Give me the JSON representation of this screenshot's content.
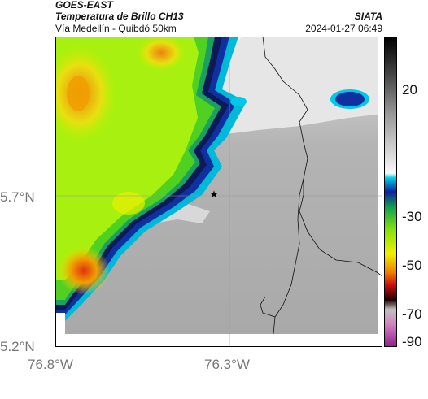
{
  "header": {
    "title_line1": "GOES-EAST",
    "title_line2": "Temperatura de Brillo CH13",
    "subtitle": "Vía Medellín - Quibdó 50km",
    "organization": "SIATA",
    "datetime": "2024-01-27 06:49"
  },
  "axes": {
    "y_ticks": [
      "5.7°N",
      "5.2°N"
    ],
    "x_ticks": [
      "76.8°W",
      "76.3°W"
    ]
  },
  "colorbar": {
    "tick_labels": [
      "20",
      "-30",
      "-50",
      "-70",
      "-90"
    ]
  },
  "map": {
    "marker": "star-icon"
  }
}
